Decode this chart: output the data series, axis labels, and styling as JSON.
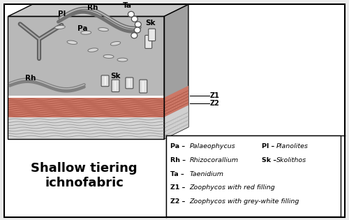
{
  "title_text": "Shallow tiering\nichnofabric",
  "title_fontsize": 13,
  "bg_color": "#ebebeb",
  "box_color": "#ffffff",
  "border_color": "#000000",
  "figure_width": 5.0,
  "figure_height": 3.15,
  "dpi": 100,
  "left_entries": [
    [
      "Pa",
      " – ",
      "Palaeophycus"
    ],
    [
      "Rh",
      " – ",
      "Rhizocorallium"
    ],
    [
      "Ta",
      " – ",
      "Taenidium"
    ],
    [
      "Z1",
      " – ",
      "Zoophycos with red filling"
    ],
    [
      "Z2",
      " – ",
      "Zoophycos with grey-white filling"
    ]
  ],
  "right_entries": [
    [
      "Pl",
      " – ",
      "Planolites"
    ],
    [
      "Sk",
      " – ",
      "Skolithos"
    ]
  ]
}
